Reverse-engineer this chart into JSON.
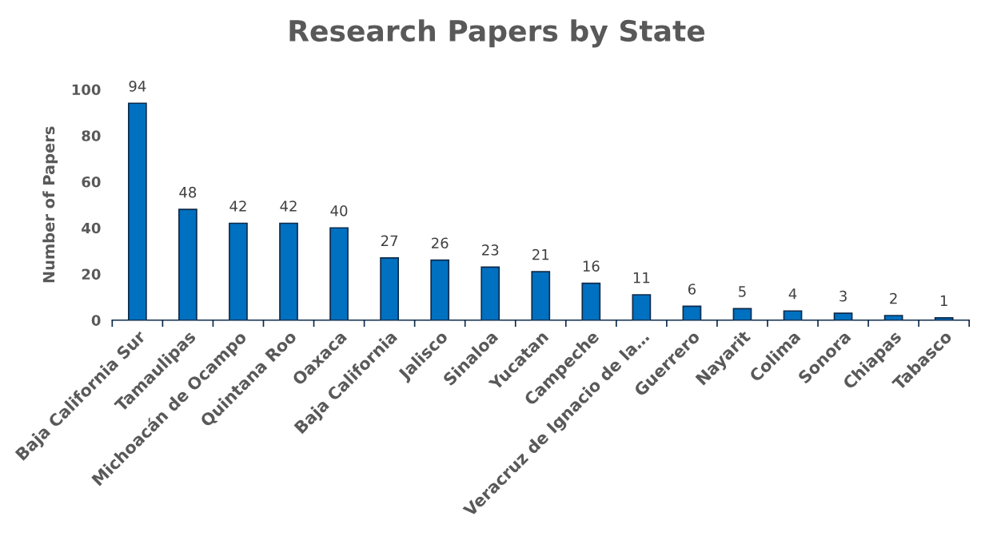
{
  "chart_data": {
    "type": "bar",
    "title": "Research Papers by State",
    "ylabel": "Number of Papers",
    "categories": [
      "Baja California Sur",
      "Tamaulipas",
      "Michoacán de Ocampo",
      "Quintana Roo",
      "Oaxaca",
      "Baja California",
      "Jalisco",
      "Sinaloa",
      "Yucatan",
      "Campeche",
      "Veracruz de Ignacio de la…",
      "Guerrero",
      "Nayarit",
      "Colima",
      "Sonora",
      "Chiapas",
      "Tabasco"
    ],
    "values": [
      94,
      48,
      42,
      42,
      40,
      27,
      26,
      23,
      21,
      16,
      11,
      6,
      5,
      4,
      3,
      2,
      1
    ],
    "color": "#0070c0",
    "ylim": [
      0,
      100
    ],
    "yticks": [
      0,
      20,
      40,
      60,
      80,
      100
    ],
    "grid": false,
    "data_labels": true
  }
}
